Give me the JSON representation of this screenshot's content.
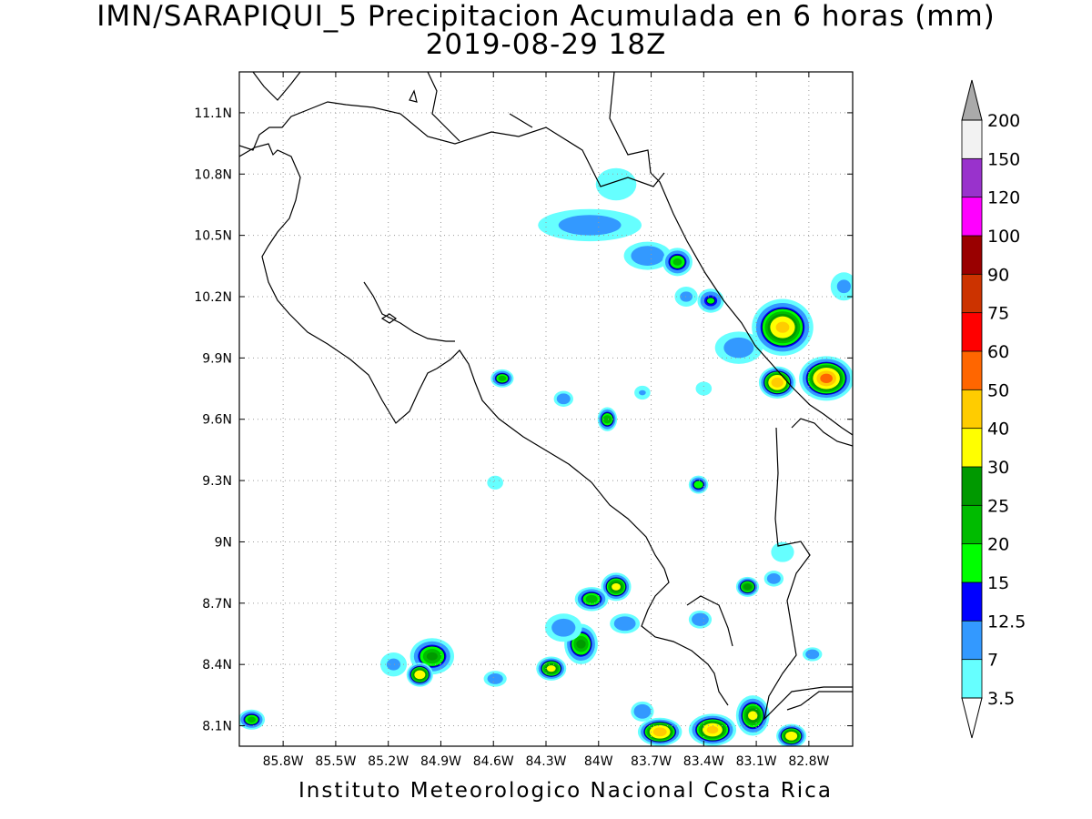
{
  "title": {
    "line1": "IMN/SARAPIQUI_5 Precipitacion Acumulada en 6 horas (mm)",
    "line2": "2019-08-29 18Z"
  },
  "footer": "Instituto Meteorologico Nacional Costa Rica",
  "axes": {
    "lon_range": [
      -86.05,
      -82.55
    ],
    "lat_range": [
      8.0,
      11.3
    ],
    "lat_ticks": [
      "11.1N",
      "10.8N",
      "10.5N",
      "10.2N",
      "9.9N",
      "9.6N",
      "9.3N",
      "9N",
      "8.7N",
      "8.4N",
      "8.1N"
    ],
    "lat_tick_values": [
      11.1,
      10.8,
      10.5,
      10.2,
      9.9,
      9.6,
      9.3,
      9.0,
      8.7,
      8.4,
      8.1
    ],
    "lon_ticks": [
      "85.8W",
      "85.5W",
      "85.2W",
      "84.9W",
      "84.6W",
      "84.3W",
      "84W",
      "83.7W",
      "83.4W",
      "83.1W",
      "82.8W"
    ],
    "lon_tick_values": [
      -85.8,
      -85.5,
      -85.2,
      -84.9,
      -84.6,
      -84.3,
      -84.0,
      -83.7,
      -83.4,
      -83.1,
      -82.8
    ],
    "grid": true
  },
  "colorbar": {
    "labels": [
      "200",
      "150",
      "120",
      "100",
      "90",
      "75",
      "60",
      "50",
      "40",
      "30",
      "25",
      "20",
      "15",
      "12.5",
      "7",
      "3.5"
    ],
    "colors": [
      "#f2f2f2",
      "#9932cc",
      "#ff00ff",
      "#990000",
      "#cc3300",
      "#ff0000",
      "#ff6600",
      "#ffcc00",
      "#ffff00",
      "#009900",
      "#00bb00",
      "#00ff00",
      "#0000ff",
      "#3399ff",
      "#66ffff"
    ],
    "over_color": "#aaaaaa",
    "under_color": "#ffffff"
  },
  "levels": [
    3.5,
    7,
    12.5,
    15,
    20,
    25,
    30,
    40,
    50
  ],
  "precip_cells": [
    {
      "lon": -84.05,
      "lat": 10.55,
      "peak": 10,
      "rlon": 0.28,
      "rlat": 0.07
    },
    {
      "lon": -83.72,
      "lat": 10.4,
      "peak": 12,
      "rlon": 0.12,
      "rlat": 0.06
    },
    {
      "lon": -83.55,
      "lat": 10.37,
      "peak": 20,
      "rlon": 0.07,
      "rlat": 0.06
    },
    {
      "lon": -83.9,
      "lat": 10.75,
      "peak": 6,
      "rlon": 0.1,
      "rlat": 0.07
    },
    {
      "lon": -83.36,
      "lat": 10.18,
      "peak": 15,
      "rlon": 0.06,
      "rlat": 0.05
    },
    {
      "lon": -83.5,
      "lat": 10.2,
      "peak": 8,
      "rlon": 0.05,
      "rlat": 0.04
    },
    {
      "lon": -82.95,
      "lat": 10.05,
      "peak": 40,
      "rlon": 0.16,
      "rlat": 0.13
    },
    {
      "lon": -82.7,
      "lat": 9.8,
      "peak": 50,
      "rlon": 0.14,
      "rlat": 0.1
    },
    {
      "lon": -82.98,
      "lat": 9.78,
      "peak": 45,
      "rlon": 0.09,
      "rlat": 0.07
    },
    {
      "lon": -83.2,
      "lat": 9.95,
      "peak": 10,
      "rlon": 0.12,
      "rlat": 0.07
    },
    {
      "lon": -84.55,
      "lat": 9.8,
      "peak": 20,
      "rlon": 0.05,
      "rlat": 0.035
    },
    {
      "lon": -84.2,
      "lat": 9.7,
      "peak": 10,
      "rlon": 0.04,
      "rlat": 0.03
    },
    {
      "lon": -83.95,
      "lat": 9.6,
      "peak": 22,
      "rlon": 0.04,
      "rlat": 0.05
    },
    {
      "lon": -83.75,
      "lat": 9.73,
      "peak": 7,
      "rlon": 0.03,
      "rlat": 0.025
    },
    {
      "lon": -83.4,
      "lat": 9.75,
      "peak": 5,
      "rlon": 0.03,
      "rlat": 0.025
    },
    {
      "lon": -83.43,
      "lat": 9.28,
      "peak": 18,
      "rlon": 0.04,
      "rlat": 0.035
    },
    {
      "lon": -84.59,
      "lat": 9.29,
      "peak": 5,
      "rlon": 0.03,
      "rlat": 0.025
    },
    {
      "lon": -83.9,
      "lat": 8.78,
      "peak": 30,
      "rlon": 0.07,
      "rlat": 0.06
    },
    {
      "lon": -84.04,
      "lat": 8.72,
      "peak": 22,
      "rlon": 0.08,
      "rlat": 0.05
    },
    {
      "lon": -83.15,
      "lat": 8.78,
      "peak": 25,
      "rlon": 0.05,
      "rlat": 0.04
    },
    {
      "lon": -83.0,
      "lat": 8.82,
      "peak": 10,
      "rlon": 0.04,
      "rlat": 0.03
    },
    {
      "lon": -82.95,
      "lat": 8.95,
      "peak": 6,
      "rlon": 0.05,
      "rlat": 0.04
    },
    {
      "lon": -83.42,
      "lat": 8.62,
      "peak": 12,
      "rlon": 0.05,
      "rlat": 0.035
    },
    {
      "lon": -84.1,
      "lat": 8.5,
      "peak": 25,
      "rlon": 0.08,
      "rlat": 0.09
    },
    {
      "lon": -84.27,
      "lat": 8.38,
      "peak": 30,
      "rlon": 0.07,
      "rlat": 0.05
    },
    {
      "lon": -84.2,
      "lat": 8.58,
      "peak": 10,
      "rlon": 0.09,
      "rlat": 0.06
    },
    {
      "lon": -83.85,
      "lat": 8.6,
      "peak": 12,
      "rlon": 0.07,
      "rlat": 0.04
    },
    {
      "lon": -84.95,
      "lat": 8.44,
      "peak": 25,
      "rlon": 0.11,
      "rlat": 0.08
    },
    {
      "lon": -85.02,
      "lat": 8.35,
      "peak": 35,
      "rlon": 0.06,
      "rlat": 0.05
    },
    {
      "lon": -85.17,
      "lat": 8.4,
      "peak": 8,
      "rlon": 0.06,
      "rlat": 0.05
    },
    {
      "lon": -84.59,
      "lat": 8.33,
      "peak": 10,
      "rlon": 0.05,
      "rlat": 0.03
    },
    {
      "lon": -85.98,
      "lat": 8.13,
      "peak": 20,
      "rlon": 0.06,
      "rlat": 0.04
    },
    {
      "lon": -83.65,
      "lat": 8.07,
      "peak": 45,
      "rlon": 0.11,
      "rlat": 0.06
    },
    {
      "lon": -83.35,
      "lat": 8.08,
      "peak": 40,
      "rlon": 0.12,
      "rlat": 0.07
    },
    {
      "lon": -83.12,
      "lat": 8.15,
      "peak": 30,
      "rlon": 0.08,
      "rlat": 0.09
    },
    {
      "lon": -82.9,
      "lat": 8.05,
      "peak": 35,
      "rlon": 0.07,
      "rlat": 0.05
    },
    {
      "lon": -83.75,
      "lat": 8.17,
      "peak": 12,
      "rlon": 0.05,
      "rlat": 0.04
    },
    {
      "lon": -82.78,
      "lat": 8.45,
      "peak": 10,
      "rlon": 0.04,
      "rlat": 0.025
    },
    {
      "lon": -82.6,
      "lat": 10.25,
      "peak": 8,
      "rlon": 0.06,
      "rlat": 0.06
    }
  ]
}
